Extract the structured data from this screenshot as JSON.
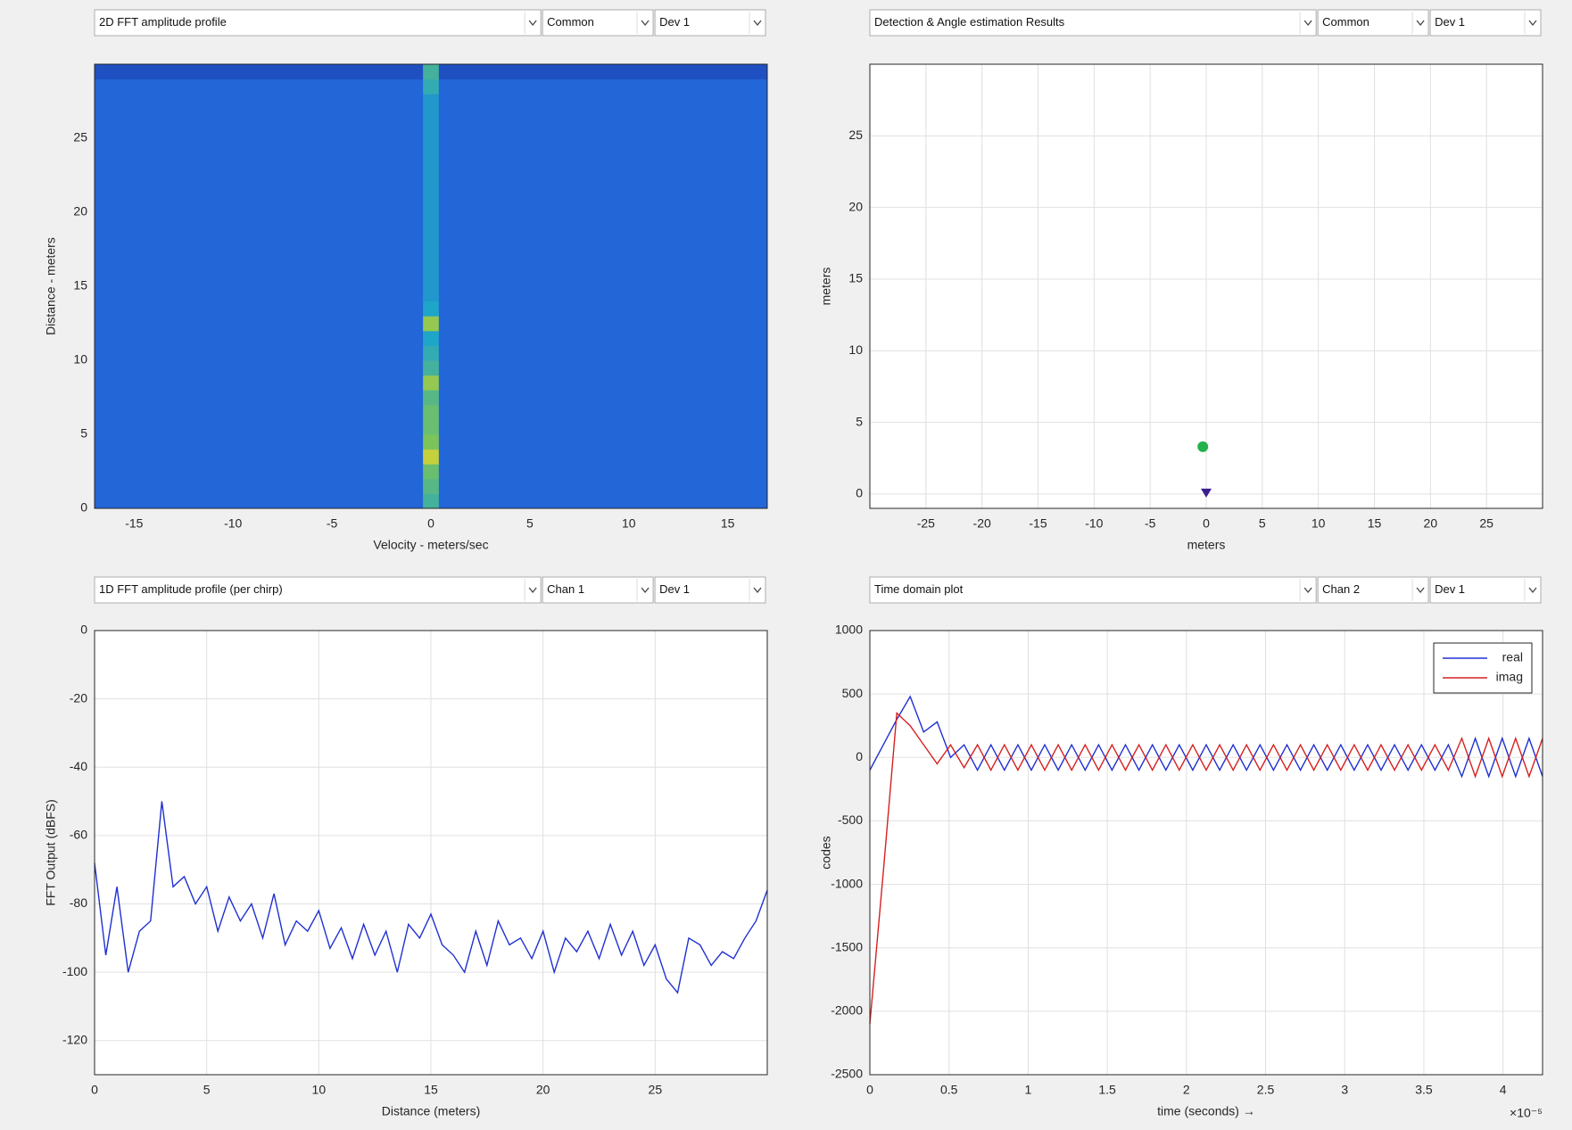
{
  "dropdowns": [
    [
      "2D FFT amplitude profile",
      "Common",
      "Dev 1"
    ],
    [
      "Detection & Angle estimation Results",
      "Common",
      "Dev 1"
    ],
    [
      "1D FFT amplitude profile (per chirp)",
      "Chan 1",
      "Dev 1"
    ],
    [
      "Time domain plot",
      "Chan 2",
      "Dev 1"
    ]
  ],
  "chart_data": [
    {
      "type": "heatmap",
      "xlabel": "Velocity - meters/sec",
      "ylabel": "Distance - meters",
      "xlim": [
        -17,
        17
      ],
      "xticks": [
        -15,
        -10,
        -5,
        0,
        5,
        10,
        15
      ],
      "ylim": [
        0,
        30
      ],
      "yticks": [
        0,
        5,
        10,
        15,
        20,
        25
      ],
      "grid": false,
      "colormap": [
        "#1a2ea0",
        "#2266d8",
        "#1fa5c8",
        "#7cc45a",
        "#f5d82a"
      ],
      "xbins": [
        -17,
        -0.4,
        0.4,
        17
      ],
      "ybins": [
        0,
        1,
        2,
        3,
        4,
        5,
        6,
        7,
        8,
        9,
        10,
        11,
        12,
        13,
        14,
        15,
        16,
        17,
        18,
        19,
        20,
        21,
        22,
        23,
        24,
        25,
        26,
        27,
        28,
        29,
        30
      ],
      "values": [
        [
          0.25,
          0.6,
          0.25
        ],
        [
          0.25,
          0.65,
          0.25
        ],
        [
          0.25,
          0.7,
          0.25
        ],
        [
          0.25,
          0.9,
          0.25
        ],
        [
          0.25,
          0.75,
          0.25
        ],
        [
          0.25,
          0.7,
          0.25
        ],
        [
          0.25,
          0.7,
          0.25
        ],
        [
          0.25,
          0.65,
          0.25
        ],
        [
          0.25,
          0.8,
          0.25
        ],
        [
          0.25,
          0.6,
          0.25
        ],
        [
          0.25,
          0.55,
          0.25
        ],
        [
          0.25,
          0.5,
          0.25
        ],
        [
          0.25,
          0.8,
          0.25
        ],
        [
          0.25,
          0.5,
          0.25
        ],
        [
          0.25,
          0.45,
          0.25
        ],
        [
          0.25,
          0.45,
          0.25
        ],
        [
          0.25,
          0.45,
          0.25
        ],
        [
          0.25,
          0.45,
          0.25
        ],
        [
          0.25,
          0.45,
          0.25
        ],
        [
          0.25,
          0.45,
          0.25
        ],
        [
          0.25,
          0.45,
          0.25
        ],
        [
          0.25,
          0.45,
          0.25
        ],
        [
          0.25,
          0.45,
          0.25
        ],
        [
          0.25,
          0.45,
          0.25
        ],
        [
          0.25,
          0.45,
          0.25
        ],
        [
          0.25,
          0.45,
          0.25
        ],
        [
          0.25,
          0.45,
          0.25
        ],
        [
          0.25,
          0.45,
          0.25
        ],
        [
          0.25,
          0.55,
          0.25
        ],
        [
          0.15,
          0.6,
          0.15
        ]
      ]
    },
    {
      "type": "scatter",
      "xlabel": "meters",
      "ylabel": "meters",
      "xlim": [
        -30,
        30
      ],
      "xticks": [
        -25,
        -20,
        -15,
        -10,
        -5,
        0,
        5,
        10,
        15,
        20,
        25
      ],
      "ylim": [
        -1,
        30
      ],
      "yticks": [
        0,
        5,
        10,
        15,
        20,
        25
      ],
      "grid": true,
      "series": [
        {
          "color": "#22b14c",
          "marker": "circle",
          "x": [
            -0.3
          ],
          "values": [
            3.3
          ]
        },
        {
          "color": "#3a1f8f",
          "marker": "triangle-down",
          "x": [
            0
          ],
          "values": [
            0
          ]
        }
      ]
    },
    {
      "type": "line",
      "xlabel": "Distance (meters)",
      "ylabel": "FFT Output (dBFS)",
      "xlim": [
        0,
        30
      ],
      "xticks": [
        0,
        5,
        10,
        15,
        20,
        25
      ],
      "ylim": [
        -130,
        0
      ],
      "yticks": [
        0,
        -20,
        -40,
        -60,
        -80,
        -100,
        -120
      ],
      "grid": true,
      "x": [
        0,
        0.5,
        1,
        1.5,
        2,
        2.5,
        3,
        3.5,
        4,
        4.5,
        5,
        5.5,
        6,
        6.5,
        7,
        7.5,
        8,
        8.5,
        9,
        9.5,
        10,
        10.5,
        11,
        11.5,
        12,
        12.5,
        13,
        13.5,
        14,
        14.5,
        15,
        15.5,
        16,
        16.5,
        17,
        17.5,
        18,
        18.5,
        19,
        19.5,
        20,
        20.5,
        21,
        21.5,
        22,
        22.5,
        23,
        23.5,
        24,
        24.5,
        25,
        25.5,
        26,
        26.5,
        27,
        27.5,
        28,
        28.5,
        29,
        29.5,
        30
      ],
      "series": [
        {
          "color": "#2030d0",
          "values": [
            -68,
            -95,
            -75,
            -100,
            -88,
            -85,
            -50,
            -75,
            -72,
            -80,
            -75,
            -88,
            -78,
            -85,
            -80,
            -90,
            -77,
            -92,
            -85,
            -88,
            -82,
            -93,
            -87,
            -96,
            -86,
            -95,
            -88,
            -100,
            -86,
            -90,
            -83,
            -92,
            -95,
            -100,
            -88,
            -98,
            -85,
            -92,
            -90,
            -96,
            -88,
            -100,
            -90,
            -94,
            -88,
            -96,
            -86,
            -95,
            -88,
            -98,
            -92,
            -102,
            -106,
            -90,
            -92,
            -98,
            -94,
            -96,
            -90,
            -85,
            -76
          ]
        }
      ]
    },
    {
      "type": "line",
      "xlabel": "time  (seconds) →",
      "ylabel": "codes",
      "x_exponent_label": "×10⁻⁵",
      "xlim": [
        0,
        4.25
      ],
      "xticks": [
        0,
        0.5,
        1,
        1.5,
        2,
        2.5,
        3,
        3.5,
        4
      ],
      "ylim": [
        -2500,
        1000
      ],
      "yticks": [
        -2500,
        -2000,
        -1500,
        -1000,
        -500,
        0,
        500,
        1000
      ],
      "grid": true,
      "legend": "top-right",
      "x": [
        0,
        0.085,
        0.17,
        0.255,
        0.34,
        0.425,
        0.51,
        0.595,
        0.68,
        0.765,
        0.85,
        0.935,
        1.02,
        1.105,
        1.19,
        1.275,
        1.36,
        1.445,
        1.53,
        1.615,
        1.7,
        1.785,
        1.87,
        1.955,
        2.04,
        2.125,
        2.21,
        2.295,
        2.38,
        2.465,
        2.55,
        2.635,
        2.72,
        2.805,
        2.89,
        2.975,
        3.06,
        3.145,
        3.23,
        3.315,
        3.4,
        3.485,
        3.57,
        3.655,
        3.74,
        3.825,
        3.91,
        3.995,
        4.08,
        4.165,
        4.25
      ],
      "series": [
        {
          "name": "real",
          "color": "#2030d0",
          "values": [
            -100,
            100,
            300,
            480,
            200,
            280,
            0,
            100,
            -100,
            100,
            -100,
            100,
            -100,
            100,
            -100,
            100,
            -100,
            100,
            -100,
            100,
            -100,
            100,
            -100,
            100,
            -100,
            100,
            -100,
            100,
            -100,
            100,
            -100,
            100,
            -100,
            100,
            -100,
            100,
            -100,
            100,
            -100,
            100,
            -100,
            100,
            -100,
            100,
            -150,
            150,
            -150,
            150,
            -150,
            150,
            -150
          ]
        },
        {
          "name": "imag",
          "color": "#d62020",
          "values": [
            -2100,
            -900,
            350,
            250,
            100,
            -50,
            100,
            -80,
            100,
            -100,
            100,
            -100,
            100,
            -100,
            100,
            -100,
            100,
            -100,
            100,
            -100,
            100,
            -100,
            100,
            -100,
            100,
            -100,
            100,
            -100,
            100,
            -100,
            100,
            -100,
            100,
            -100,
            100,
            -100,
            100,
            -100,
            100,
            -100,
            100,
            -100,
            100,
            -100,
            150,
            -150,
            150,
            -150,
            150,
            -150,
            150
          ]
        }
      ]
    }
  ]
}
